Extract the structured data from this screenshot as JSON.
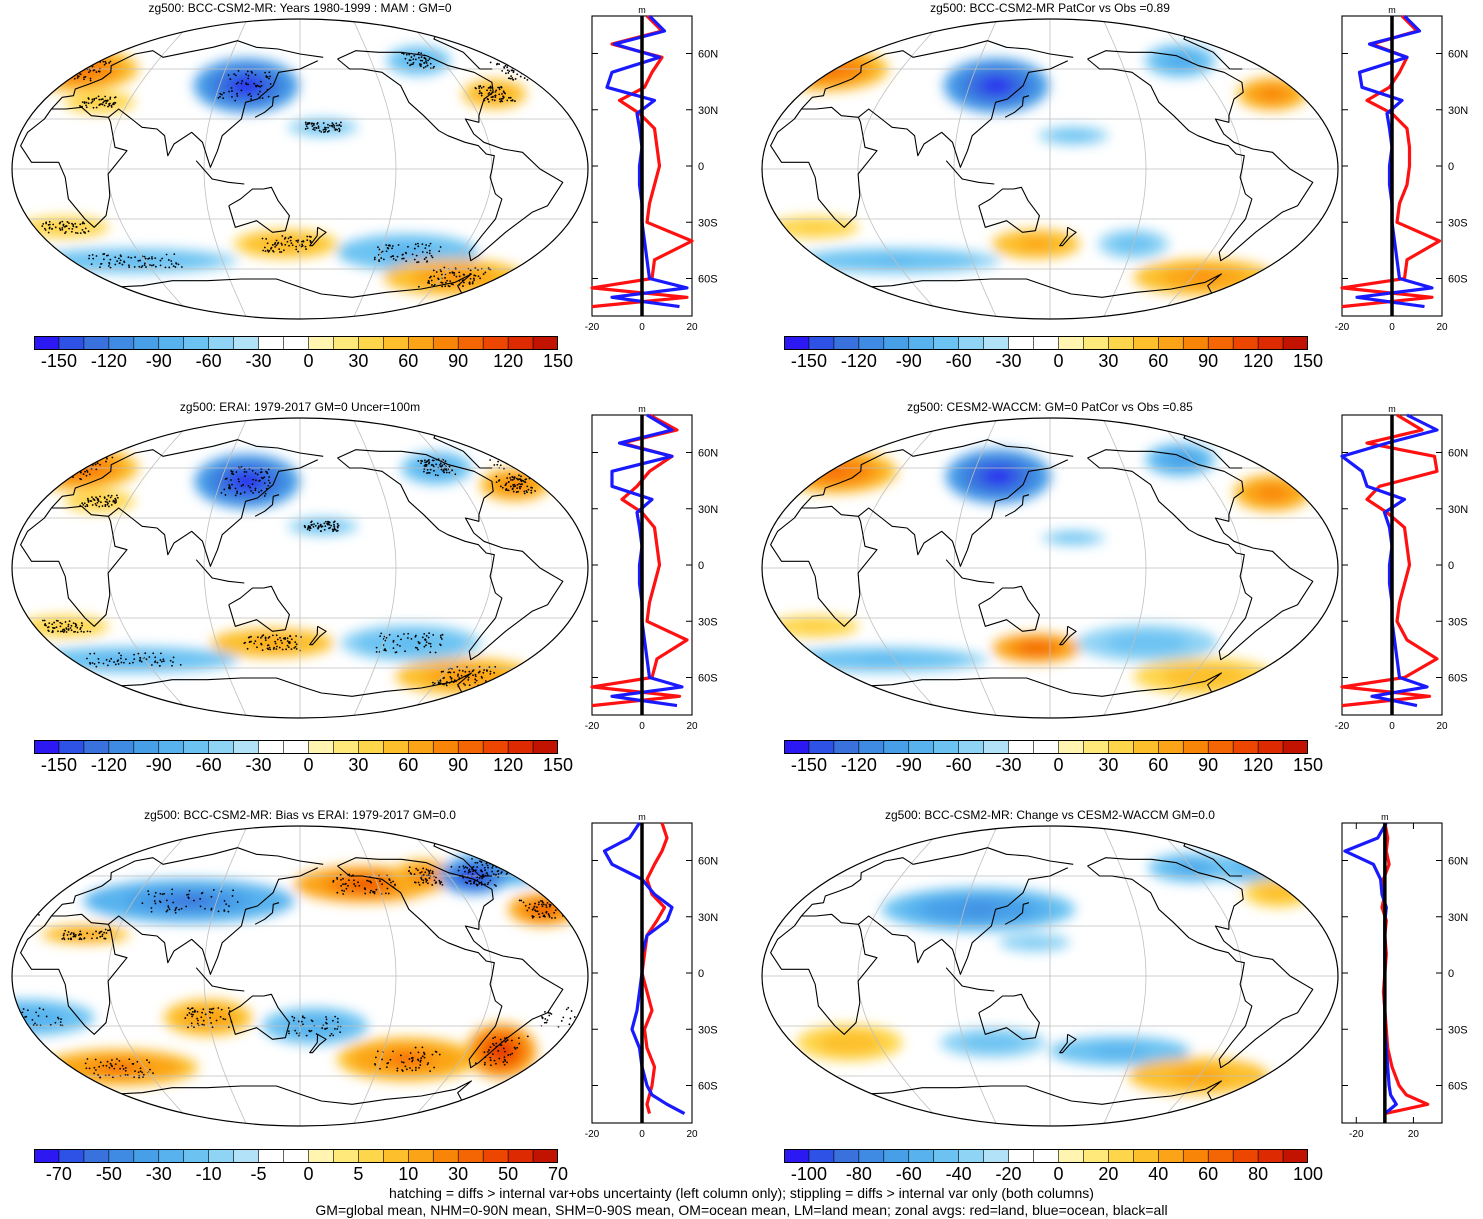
{
  "colors": {
    "neg": [
      "#2b18f3",
      "#2e52e6",
      "#3a72dd",
      "#3f8ae2",
      "#479fe8",
      "#57b2ee",
      "#6cc3f2",
      "#8fd3f5",
      "#b2e2f8"
    ],
    "pos": [
      "#fff5b0",
      "#ffe97a",
      "#fed64c",
      "#fdbf2c",
      "#fba417",
      "#f98508",
      "#f46603",
      "#ec4601",
      "#dd2a00",
      "#c21300"
    ],
    "land_line": "#ff1111",
    "ocean_line": "#1a1aff",
    "all_line": "#000000",
    "grid": "#bfbfbf"
  },
  "chart_data": [
    {
      "type": "heatmap",
      "title": "zg500: BCC-CSM2-MR: Years 1980-1999 : MAM : GM=0",
      "colorbar_ticks": [
        "-150",
        "-120",
        "-90",
        "-60",
        "-30",
        "0",
        "30",
        "60",
        "90",
        "120",
        "150"
      ],
      "zonal_xticks": [
        "-20",
        "0",
        "20"
      ],
      "zonal_unit": "m",
      "lat_ticks": [
        "60N",
        "30N",
        "0",
        "30S",
        "60S"
      ],
      "zonal_xlim": [
        -20,
        20
      ],
      "zonal_lat": [
        80,
        72,
        65,
        58,
        50,
        42,
        35,
        28,
        20,
        10,
        0,
        -10,
        -20,
        -30,
        -40,
        -50,
        -60,
        -65,
        -70,
        -75
      ],
      "zonal_land": [
        2,
        8,
        -12,
        8,
        4,
        1,
        -9,
        -1,
        5,
        6,
        7,
        5,
        3,
        2,
        20,
        5,
        4,
        -20,
        18,
        -20
      ],
      "zonal_ocean": [
        3,
        9,
        -11,
        7,
        -12,
        -14,
        5,
        -2,
        -1,
        0,
        -1,
        -1,
        0,
        0,
        1,
        2,
        3,
        18,
        -12,
        15
      ],
      "blobs": [
        {
          "lon": -20,
          "lat": 60,
          "rx": 35,
          "ry": 12,
          "v": 90
        },
        {
          "lon": 120,
          "lat": 50,
          "rx": 30,
          "ry": 15,
          "v": -150
        },
        {
          "lon": 175,
          "lat": 25,
          "rx": 20,
          "ry": 5,
          "v": -40
        },
        {
          "lon": -100,
          "lat": 65,
          "rx": 18,
          "ry": 8,
          "v": -60
        },
        {
          "lon": -60,
          "lat": 45,
          "rx": 18,
          "ry": 8,
          "v": 60
        },
        {
          "lon": 20,
          "lat": 40,
          "rx": 20,
          "ry": 6,
          "v": 30
        },
        {
          "lon": 0,
          "lat": -35,
          "rx": 25,
          "ry": 6,
          "v": 30
        },
        {
          "lon": 30,
          "lat": -55,
          "rx": 60,
          "ry": 7,
          "v": -50
        },
        {
          "lon": 150,
          "lat": -45,
          "rx": 30,
          "ry": 8,
          "v": 50
        },
        {
          "lon": -120,
          "lat": -50,
          "rx": 40,
          "ry": 10,
          "v": -60
        },
        {
          "lon": -70,
          "lat": -65,
          "rx": 40,
          "ry": 10,
          "v": 70
        }
      ]
    },
    {
      "type": "heatmap",
      "title": "zg500: BCC-CSM2-MR PatCor vs Obs =0.89",
      "colorbar_ticks": [
        "-150",
        "-120",
        "-90",
        "-60",
        "-30",
        "0",
        "30",
        "60",
        "90",
        "120",
        "150"
      ],
      "zonal_xticks": [
        "-20",
        "0",
        "20"
      ],
      "zonal_unit": "m",
      "lat_ticks": [
        "60N",
        "30N",
        "0",
        "30S",
        "60S"
      ],
      "zonal_xlim": [
        -20,
        20
      ],
      "zonal_lat": [
        80,
        72,
        65,
        58,
        50,
        42,
        35,
        28,
        20,
        10,
        0,
        -10,
        -20,
        -30,
        -40,
        -50,
        -60,
        -65,
        -70,
        -75
      ],
      "zonal_land": [
        4,
        10,
        -8,
        6,
        3,
        -1,
        -10,
        0,
        6,
        7,
        7,
        6,
        3,
        2,
        19,
        6,
        5,
        -20,
        16,
        -20
      ],
      "zonal_ocean": [
        5,
        11,
        -9,
        6,
        -13,
        -12,
        4,
        -2,
        -1,
        0,
        -1,
        -1,
        0,
        0,
        1,
        2,
        3,
        16,
        -14,
        13
      ],
      "blobs": [
        {
          "lon": -20,
          "lat": 60,
          "rx": 35,
          "ry": 12,
          "v": 90
        },
        {
          "lon": 120,
          "lat": 50,
          "rx": 30,
          "ry": 15,
          "v": -150
        },
        {
          "lon": 175,
          "lat": 20,
          "rx": 20,
          "ry": 5,
          "v": -40
        },
        {
          "lon": -90,
          "lat": 65,
          "rx": 20,
          "ry": 9,
          "v": -70
        },
        {
          "lon": -40,
          "lat": 45,
          "rx": 20,
          "ry": 9,
          "v": 80
        },
        {
          "lon": 0,
          "lat": -35,
          "rx": 25,
          "ry": 6,
          "v": 30
        },
        {
          "lon": 40,
          "lat": -55,
          "rx": 60,
          "ry": 7,
          "v": -50
        },
        {
          "lon": 150,
          "lat": -45,
          "rx": 25,
          "ry": 8,
          "v": 60
        },
        {
          "lon": -140,
          "lat": -45,
          "rx": 20,
          "ry": 8,
          "v": -40
        },
        {
          "lon": -70,
          "lat": -65,
          "rx": 40,
          "ry": 10,
          "v": 70
        }
      ]
    },
    {
      "type": "heatmap",
      "title": "zg500: ERAI: 1979-2017 GM=0 Uncer=100m",
      "colorbar_ticks": [
        "-150",
        "-120",
        "-90",
        "-60",
        "-30",
        "0",
        "30",
        "60",
        "90",
        "120",
        "150"
      ],
      "zonal_xticks": [
        "-20",
        "0",
        "20"
      ],
      "zonal_unit": "m",
      "lat_ticks": [
        "60N",
        "30N",
        "0",
        "30S",
        "60S"
      ],
      "zonal_xlim": [
        -20,
        20
      ],
      "zonal_lat": [
        80,
        72,
        65,
        58,
        50,
        42,
        35,
        28,
        20,
        10,
        0,
        -10,
        -20,
        -30,
        -40,
        -50,
        -60,
        -65,
        -70,
        -75
      ],
      "zonal_land": [
        3,
        14,
        -8,
        12,
        3,
        -2,
        -8,
        0,
        5,
        6,
        7,
        5,
        3,
        2,
        18,
        6,
        4,
        -20,
        15,
        -20
      ],
      "zonal_ocean": [
        2,
        12,
        -9,
        12,
        -12,
        -12,
        4,
        -2,
        -1,
        0,
        -1,
        -1,
        0,
        0,
        1,
        2,
        3,
        16,
        -12,
        14
      ],
      "blobs": [
        {
          "lon": -20,
          "lat": 60,
          "rx": 35,
          "ry": 12,
          "v": 90
        },
        {
          "lon": 120,
          "lat": 52,
          "rx": 30,
          "ry": 15,
          "v": -150
        },
        {
          "lon": 175,
          "lat": 25,
          "rx": 20,
          "ry": 5,
          "v": -40
        },
        {
          "lon": -90,
          "lat": 60,
          "rx": 20,
          "ry": 9,
          "v": -70
        },
        {
          "lon": -40,
          "lat": 50,
          "rx": 20,
          "ry": 9,
          "v": 80
        },
        {
          "lon": 20,
          "lat": 40,
          "rx": 20,
          "ry": 6,
          "v": 30
        },
        {
          "lon": 0,
          "lat": -35,
          "rx": 25,
          "ry": 6,
          "v": 30
        },
        {
          "lon": 30,
          "lat": -55,
          "rx": 60,
          "ry": 7,
          "v": -60
        },
        {
          "lon": 140,
          "lat": -45,
          "rx": 35,
          "ry": 8,
          "v": 60
        },
        {
          "lon": -120,
          "lat": -45,
          "rx": 40,
          "ry": 10,
          "v": -50
        },
        {
          "lon": -60,
          "lat": -65,
          "rx": 40,
          "ry": 10,
          "v": 70
        }
      ]
    },
    {
      "type": "heatmap",
      "title": "zg500: CESM2-WACCM: GM=0 PatCor vs Obs =0.85",
      "colorbar_ticks": [
        "-150",
        "-120",
        "-90",
        "-60",
        "-30",
        "0",
        "30",
        "60",
        "90",
        "120",
        "150"
      ],
      "zonal_xticks": [
        "-20",
        "0",
        "20"
      ],
      "zonal_unit": "m",
      "lat_ticks": [
        "60N",
        "30N",
        "0",
        "30S",
        "60S"
      ],
      "zonal_xlim": [
        -20,
        20
      ],
      "zonal_lat": [
        80,
        72,
        65,
        58,
        50,
        42,
        35,
        28,
        20,
        10,
        0,
        -10,
        -20,
        -30,
        -40,
        -50,
        -60,
        -65,
        -70,
        -75
      ],
      "zonal_land": [
        2,
        12,
        -10,
        17,
        18,
        -5,
        -10,
        -2,
        5,
        6,
        7,
        5,
        3,
        2,
        6,
        18,
        5,
        -20,
        15,
        -20
      ],
      "zonal_ocean": [
        6,
        18,
        -2,
        -20,
        -12,
        -10,
        5,
        -3,
        -1,
        0,
        -1,
        -1,
        0,
        0,
        1,
        2,
        3,
        14,
        -8,
        10
      ],
      "blobs": [
        {
          "lon": -10,
          "lat": 58,
          "rx": 35,
          "ry": 12,
          "v": 90
        },
        {
          "lon": 120,
          "lat": 55,
          "rx": 30,
          "ry": 15,
          "v": -150
        },
        {
          "lon": 175,
          "lat": 18,
          "rx": 18,
          "ry": 4,
          "v": -40
        },
        {
          "lon": -90,
          "lat": 65,
          "rx": 20,
          "ry": 9,
          "v": -80
        },
        {
          "lon": -40,
          "lat": 45,
          "rx": 22,
          "ry": 10,
          "v": 80
        },
        {
          "lon": 0,
          "lat": -35,
          "rx": 25,
          "ry": 6,
          "v": 30
        },
        {
          "lon": 30,
          "lat": -55,
          "rx": 60,
          "ry": 7,
          "v": -50
        },
        {
          "lon": 150,
          "lat": -48,
          "rx": 25,
          "ry": 8,
          "v": 100
        },
        {
          "lon": -130,
          "lat": -45,
          "rx": 40,
          "ry": 10,
          "v": -40
        },
        {
          "lon": -70,
          "lat": -65,
          "rx": 40,
          "ry": 10,
          "v": 40
        }
      ]
    },
    {
      "type": "heatmap",
      "title": "zg500: BCC-CSM2-MR: Bias vs ERAI: 1979-2017 GM=0.0",
      "colorbar_ticks": [
        "-70",
        "-50",
        "-30",
        "-10",
        "-5",
        "0",
        "5",
        "10",
        "30",
        "50",
        "70"
      ],
      "zonal_xticks": [
        "-20",
        "0",
        "20"
      ],
      "zonal_unit": "m",
      "lat_ticks": [
        "60N",
        "30N",
        "0",
        "30S",
        "60S"
      ],
      "zonal_xlim": [
        -20,
        20
      ],
      "zonal_lat": [
        80,
        72,
        65,
        58,
        50,
        42,
        35,
        28,
        20,
        10,
        0,
        -10,
        -20,
        -30,
        -40,
        -50,
        -60,
        -65,
        -70,
        -75
      ],
      "zonal_land": [
        8,
        10,
        8,
        5,
        2,
        4,
        9,
        6,
        2,
        1,
        0,
        2,
        4,
        1,
        2,
        5,
        4,
        3,
        2,
        3
      ],
      "zonal_ocean": [
        -1,
        -5,
        -15,
        -12,
        0,
        5,
        12,
        10,
        2,
        0,
        0,
        -1,
        -2,
        -4,
        -1,
        0,
        2,
        4,
        10,
        17
      ],
      "blobs": [
        {
          "lon": -30,
          "lat": 65,
          "rx": 30,
          "ry": 10,
          "v": -40
        },
        {
          "lon": 80,
          "lat": 45,
          "rx": 60,
          "ry": 12,
          "v": -50
        },
        {
          "lon": -150,
          "lat": 55,
          "rx": 40,
          "ry": 10,
          "v": 50
        },
        {
          "lon": -100,
          "lat": 60,
          "rx": 18,
          "ry": 9,
          "v": 40
        },
        {
          "lon": -60,
          "lat": 60,
          "rx": 20,
          "ry": 10,
          "v": -70
        },
        {
          "lon": -30,
          "lat": 40,
          "rx": 20,
          "ry": 9,
          "v": 50
        },
        {
          "lon": 20,
          "lat": 25,
          "rx": 25,
          "ry": 5,
          "v": 30
        },
        {
          "lon": -20,
          "lat": -25,
          "rx": 40,
          "ry": 10,
          "v": -30
        },
        {
          "lon": 100,
          "lat": -25,
          "rx": 25,
          "ry": 10,
          "v": 30
        },
        {
          "lon": 170,
          "lat": -30,
          "rx": 30,
          "ry": 10,
          "v": -30
        },
        {
          "lon": 20,
          "lat": -55,
          "rx": 45,
          "ry": 10,
          "v": 40
        },
        {
          "lon": -120,
          "lat": -50,
          "rx": 40,
          "ry": 12,
          "v": 40
        },
        {
          "lon": -55,
          "lat": -45,
          "rx": 20,
          "ry": 15,
          "v": 60
        }
      ]
    },
    {
      "type": "heatmap",
      "title": "zg500: BCC-CSM2-MR: Change vs CESM2-WACCM GM=0.0",
      "colorbar_ticks": [
        "-100",
        "-80",
        "-60",
        "-40",
        "-20",
        "0",
        "20",
        "40",
        "60",
        "80",
        "100"
      ],
      "zonal_xticks": [
        "-20",
        "20"
      ],
      "zonal_unit": "m",
      "lat_ticks": [
        "60N",
        "30N",
        "0",
        "30S",
        "60S"
      ],
      "zonal_xlim": [
        -30,
        40
      ],
      "zonal_lat": [
        80,
        72,
        65,
        58,
        50,
        42,
        35,
        28,
        20,
        10,
        0,
        -10,
        -20,
        -30,
        -40,
        -50,
        -60,
        -65,
        -70,
        -75
      ],
      "zonal_land": [
        0,
        2,
        1,
        3,
        -1,
        0,
        -2,
        1,
        0,
        1,
        0,
        -1,
        0,
        1,
        2,
        5,
        10,
        15,
        30,
        0
      ],
      "zonal_ocean": [
        1,
        -5,
        -28,
        -8,
        -3,
        -2,
        1,
        0,
        0,
        0,
        0,
        0,
        0,
        0,
        1,
        2,
        3,
        4,
        8,
        0
      ],
      "blobs": [
        {
          "lon": -30,
          "lat": 65,
          "rx": 30,
          "ry": 8,
          "v": -40
        },
        {
          "lon": 110,
          "lat": 40,
          "rx": 55,
          "ry": 12,
          "v": -60
        },
        {
          "lon": -80,
          "lat": 65,
          "rx": 25,
          "ry": 8,
          "v": -50
        },
        {
          "lon": -30,
          "lat": 50,
          "rx": 20,
          "ry": 8,
          "v": 30
        },
        {
          "lon": 150,
          "lat": 20,
          "rx": 20,
          "ry": 5,
          "v": -20
        },
        {
          "lon": 20,
          "lat": -40,
          "rx": 30,
          "ry": 10,
          "v": 30
        },
        {
          "lon": 120,
          "lat": -40,
          "rx": 30,
          "ry": 8,
          "v": -30
        },
        {
          "lon": -150,
          "lat": -45,
          "rx": 40,
          "ry": 8,
          "v": -40
        },
        {
          "lon": -80,
          "lat": -60,
          "rx": 40,
          "ry": 10,
          "v": 40
        }
      ]
    }
  ],
  "footer": {
    "line1": "hatching = diffs > internal var+obs uncertainty (left column only); stippling = diffs > internal var only (both columns)",
    "line2": "GM=global mean, NHM=0-90N mean, SHM=0-90S mean, OM=ocean mean, LM=land mean; zonal avgs: red=land, blue=ocean, black=all"
  }
}
